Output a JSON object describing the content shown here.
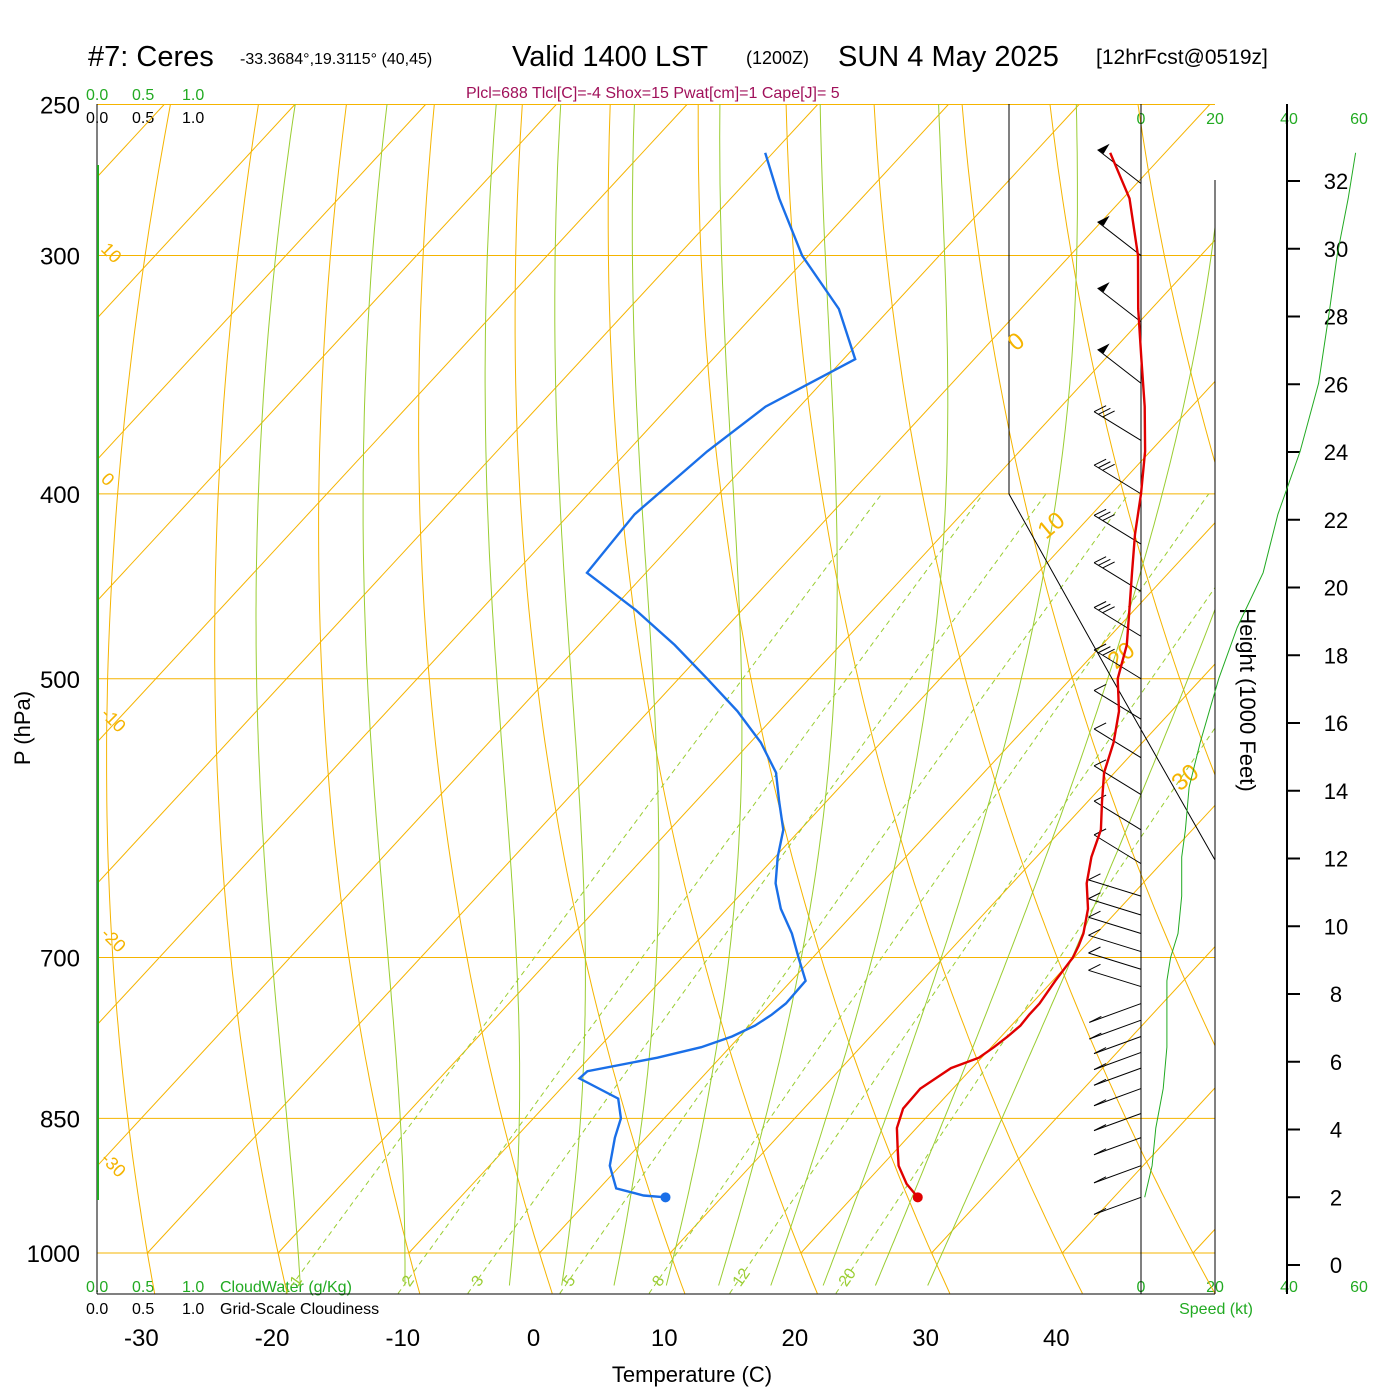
{
  "header": {
    "station": "#7: Ceres",
    "coords": "-33.3684°,19.3115° (40,45)",
    "valid": "Valid 1400 LST",
    "zulu": "(1200Z)",
    "date": "SUN 4 May 2025",
    "forecast": "[12hrFcst@0519z]",
    "indices": "Plcl=688 Tlcl[C]=-4 Shox=15 Pwat[cm]=1 Cape[J]= 5"
  },
  "cloud_scale": {
    "green_ticks": [
      "0.0",
      "0.5",
      "1.0"
    ],
    "black_ticks": [
      "0.0",
      "0.5",
      "1.0"
    ],
    "cloudwater_label": "CloudWater (g/Kg)",
    "cloudiness_label": "Grid-Scale Cloudiness"
  },
  "speed_axis": {
    "ticks": [
      "0",
      "20",
      "40",
      "60"
    ],
    "label": "Speed (kt)"
  },
  "colors": {
    "isotherm": "#f5b400",
    "dry_adiabat": "#f5b400",
    "moist_adiabat": "#9acd32",
    "mixing_ratio": "#9acd32",
    "temperature": "#e00000",
    "dewpoint": "#1a6fe8",
    "speed": "#22aa22",
    "indices_text": "#a0105a"
  },
  "chart_data": {
    "type": "line",
    "title": "#7: Ceres",
    "xlabel": "Temperature (C)",
    "ylabel": "P (hPa)",
    "y2label": "Height (1000 Feet)",
    "x_ticks": [
      "-30",
      "-20",
      "-10",
      "0",
      "10",
      "20",
      "30",
      "40"
    ],
    "p_ticks": [
      "250",
      "300",
      "400",
      "500",
      "700",
      "850",
      "1000"
    ],
    "height_ticks": [
      "0",
      "2",
      "4",
      "6",
      "8",
      "10",
      "12",
      "14",
      "16",
      "18",
      "20",
      "22",
      "24",
      "26",
      "28",
      "30",
      "32"
    ],
    "y_scale": "log-pressure",
    "ylim_hPa": [
      1000,
      250
    ],
    "xlim_C_at_1000hPa": [
      -34,
      36
    ],
    "dry_adiabat_labels": [
      "10",
      "0",
      "-10",
      "-20",
      "-30"
    ],
    "isotherm_side_labels": [
      "0",
      "10",
      "20",
      "30"
    ],
    "mixing_ratio_labels": [
      "1",
      "2",
      "3",
      "5",
      "8",
      "12",
      "20"
    ],
    "series": [
      {
        "name": "Temperature",
        "p": [
          935,
          920,
          900,
          880,
          860,
          840,
          820,
          800,
          790,
          780,
          770,
          760,
          750,
          740,
          730,
          720,
          700,
          690,
          680,
          660,
          640,
          620,
          600,
          580,
          560,
          540,
          520,
          500,
          480,
          460,
          440,
          420,
          400,
          380,
          360,
          340,
          320,
          300,
          280,
          265
        ],
        "values": [
          25,
          23.2,
          21.3,
          19.9,
          18.5,
          17.6,
          17.5,
          18.4,
          19.8,
          20.2,
          20.5,
          20.7,
          20.6,
          20.6,
          20.4,
          20.2,
          19.9,
          19.5,
          19.0,
          17.6,
          15.7,
          14.2,
          13.0,
          11.1,
          9.2,
          7.8,
          6.0,
          3.6,
          1.9,
          -0.4,
          -2.8,
          -5.3,
          -7.7,
          -10.4,
          -13.6,
          -17.2,
          -21.0,
          -24.8,
          -29.5,
          -34.2
        ]
      },
      {
        "name": "Dewpoint",
        "p": [
          935,
          933,
          925,
          900,
          870,
          850,
          830,
          810,
          803,
          790,
          780,
          770,
          760,
          750,
          740,
          720,
          700,
          680,
          660,
          640,
          620,
          600,
          580,
          560,
          540,
          520,
          500,
          480,
          460,
          440,
          410,
          380,
          360,
          340,
          320,
          300,
          280,
          265
        ],
        "values": [
          5.7,
          3.9,
          1.3,
          -0.8,
          -2.4,
          -3.3,
          -4.9,
          -9.3,
          -9.2,
          -4.8,
          -2.2,
          -0.6,
          0.4,
          0.9,
          1.2,
          1.1,
          -1.1,
          -3.3,
          -5.9,
          -8.1,
          -9.8,
          -11.3,
          -13.6,
          -15.9,
          -19.2,
          -23.2,
          -27.8,
          -32.7,
          -38.2,
          -44.5,
          -45.0,
          -43.9,
          -42.6,
          -39.1,
          -43.9,
          -50.5,
          -56.3,
          -60.6
        ]
      }
    ],
    "surface_parcel": {
      "p": 935,
      "temperature": 25,
      "dewpoint": 5.7
    },
    "wind_barbs_p": [
      275,
      300,
      325,
      350,
      375,
      400,
      425,
      450,
      475,
      500,
      525,
      550,
      575,
      600,
      625,
      650,
      665,
      680,
      695,
      710,
      725,
      740,
      755,
      770,
      785,
      800,
      820,
      845,
      870,
      900,
      935
    ],
    "wind_speed_profile": {
      "name": "Speed (kt)",
      "p": [
        935,
        900,
        860,
        820,
        780,
        750,
        720,
        700,
        680,
        650,
        620,
        600,
        570,
        540,
        500,
        470,
        440,
        410,
        380,
        350,
        320,
        300,
        280,
        265
      ],
      "values": [
        1,
        3,
        4,
        6,
        7,
        7,
        7,
        8,
        10,
        11,
        11,
        12,
        13,
        16,
        21,
        26,
        33,
        37,
        43,
        48,
        51,
        53,
        56,
        58
      ]
    }
  }
}
